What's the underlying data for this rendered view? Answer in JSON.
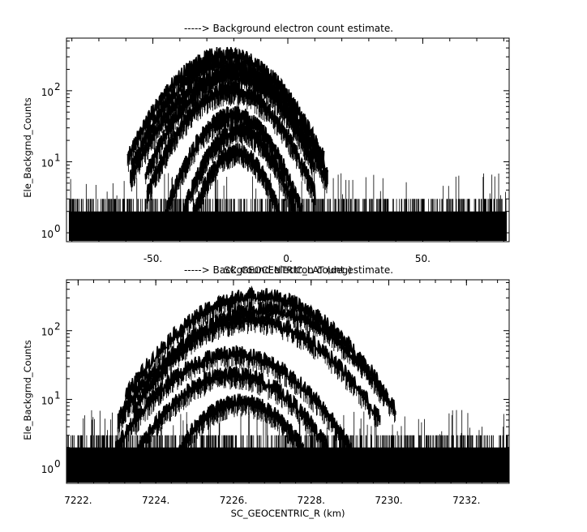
{
  "chart_data": [
    {
      "type": "line",
      "title": "-----> Background electron count estimate.",
      "xlabel": "SC_GEOCENTRIC_LAT (deg)",
      "ylabel": "Ele_Backgrnd_Counts",
      "y_scale": "log",
      "xlim": [
        -82,
        82
      ],
      "ylim": [
        0.75,
        550
      ],
      "x_tick_labels": [
        "-50.",
        "0.",
        "50."
      ],
      "x_tick_values": [
        -50,
        0,
        50
      ],
      "y_tick_labels": [
        "10",
        "10",
        "10"
      ],
      "y_tick_exponents": [
        "0",
        "1",
        "2"
      ],
      "y_tick_values": [
        1,
        10,
        100
      ],
      "data_x_range": [
        -81,
        81
      ],
      "background_counts_range": [
        1,
        3
      ],
      "series": [
        {
          "peak_x": -23,
          "width": 14,
          "peak_y": 350
        },
        {
          "peak_x": -24,
          "width": 13,
          "peak_y": 260
        },
        {
          "peak_x": -19,
          "width": 13,
          "peak_y": 200
        },
        {
          "peak_x": -22,
          "width": 14,
          "peak_y": 180
        },
        {
          "peak_x": -21,
          "width": 12,
          "peak_y": 110
        },
        {
          "peak_x": -20,
          "width": 10,
          "peak_y": 50
        },
        {
          "peak_x": -18,
          "width": 9,
          "peak_y": 30
        },
        {
          "peak_x": -19,
          "width": 8,
          "peak_y": 15
        }
      ]
    },
    {
      "type": "line",
      "title": "-----> Background electron count estimate.",
      "xlabel": "SC_GEOCENTRIC_R (km)",
      "ylabel": "Ele_Backgrnd_Counts",
      "y_scale": "log",
      "xlim": [
        7221.7,
        7233.1
      ],
      "ylim": [
        0.6,
        550
      ],
      "x_tick_labels": [
        "7222.",
        "7224.",
        "7226.",
        "7228.",
        "7230.",
        "7232."
      ],
      "x_tick_values": [
        7222,
        7224,
        7226,
        7228,
        7230,
        7232
      ],
      "y_tick_labels": [
        "10",
        "10",
        "10"
      ],
      "y_tick_exponents": [
        "0",
        "1",
        "2"
      ],
      "y_tick_values": [
        1,
        10,
        100
      ],
      "data_x_range": [
        7221.7,
        7233.1
      ],
      "background_counts_range": [
        1,
        3
      ],
      "series": [
        {
          "peak_x": 7226.6,
          "width": 1.3,
          "peak_y": 350
        },
        {
          "peak_x": 7226.8,
          "width": 1.3,
          "peak_y": 220
        },
        {
          "peak_x": 7226.4,
          "width": 1.3,
          "peak_y": 160
        },
        {
          "peak_x": 7226.0,
          "width": 1.2,
          "peak_y": 50
        },
        {
          "peak_x": 7226.0,
          "width": 1.1,
          "peak_y": 25
        },
        {
          "peak_x": 7226.2,
          "width": 0.9,
          "peak_y": 10
        }
      ]
    }
  ]
}
